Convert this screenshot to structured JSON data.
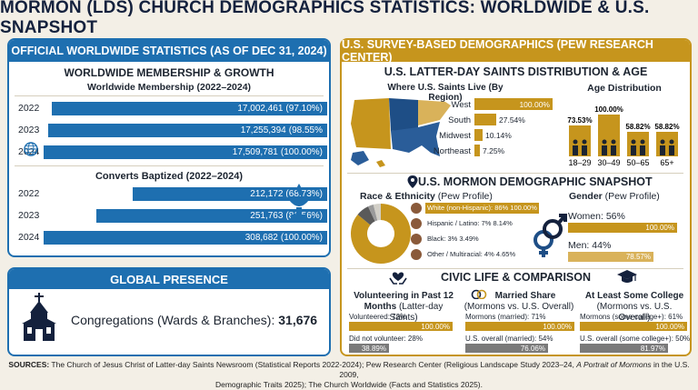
{
  "title": "MORMON (LDS) CHURCH DEMOGRAPHICS STATISTICS: WORLDWIDE & U.S. SNAPSHOT",
  "colors": {
    "blue": "#1e6fb0",
    "gold": "#c6951d",
    "navy": "#14213d",
    "gray": "#7a7a7a"
  },
  "left": {
    "header": "OFFICIAL WORLDWIDE STATISTICS (AS OF DEC 31, 2024)",
    "membership_title": "WORLDWIDE MEMBERSHIP & GROWTH",
    "converts_title": "Converts Baptized (2022–2024)",
    "global_header": "GLOBAL PRESENCE",
    "congregations_label": "Congregations (Wards & Branches): ",
    "congregations_value": "31,676"
  },
  "right": {
    "header": "U.S. SURVEY-BASED DEMOGRAPHICS (PEW RESEARCH CENTER)",
    "dist_title": "U.S. LATTER-DAY SAINTS DISTRIBUTION & AGE",
    "snapshot_title": "U.S. MORMON DEMOGRAPHIC SNAPSHOT",
    "race_title": "Race & Ethnicity",
    "race_note": " (Pew Profile)",
    "gender_title": "Gender",
    "gender_note": " (Pew Profile)",
    "civic_title": "CIVIC LIFE & COMPARISON",
    "vol_title": "Volunteering in Past 12 Months",
    "vol_note": " (Latter-day Saints)",
    "mar_title": "Married Share",
    "mar_note": "(Mormons vs. U.S. Overall)",
    "col_title": "At Least Some College",
    "col_note": "(Mormons vs. U.S. Overall)"
  },
  "sources": {
    "label": "SOURCES:",
    "text1": " The Church of Jesus Christ of Latter-day Saints Newsroom (Statistical Reports 2022-2024); Pew Research Center (Religious Landscape Study 2023–24, ",
    "italic": "A Portrait of Mormons",
    "text2": " in the U.S. 2009,",
    "line2": "Demographic Traits 2025); The Church Worldwide (Facts and Statistics 2025)."
  },
  "chart_data": [
    {
      "type": "bar",
      "title": "Worldwide Membership (2022–2024)",
      "categories": [
        "2022",
        "2023",
        "2024"
      ],
      "values": [
        17002461,
        17255394,
        17509781
      ],
      "value_labels": [
        "17,002,461",
        "17,255,394",
        "17,509,781"
      ],
      "percent_labels": [
        "(97.10%)",
        "(98.55%",
        "(100.00%)"
      ],
      "percents": [
        97.1,
        98.55,
        100.0
      ]
    },
    {
      "type": "bar",
      "title": "Converts Baptized (2022–2024)",
      "categories": [
        "2022",
        "2023",
        "2024"
      ],
      "values": [
        212172,
        251763,
        308682
      ],
      "value_labels": [
        "212,172",
        "251,763",
        "308,682"
      ],
      "percent_labels": [
        "(68.73%)",
        "(81.56%)",
        "(100.00%)"
      ],
      "percents": [
        68.73,
        81.56,
        100.0
      ]
    },
    {
      "type": "bar",
      "title": "Where U.S. Saints Live (By Region)",
      "categories": [
        "West",
        "South",
        "Midwest",
        "Northeast"
      ],
      "percents": [
        100.0,
        27.54,
        10.14,
        7.25
      ],
      "value_labels": [
        "100.00%",
        "27.54%",
        "10.14%",
        "7.25%"
      ]
    },
    {
      "type": "bar",
      "title": "Age Distribution",
      "categories": [
        "18–29",
        "30–49",
        "50–65",
        "65+"
      ],
      "percents": [
        73.53,
        100.0,
        58.82,
        58.82
      ],
      "value_labels": [
        "73.53%",
        "100.00%",
        "58.82%",
        "58.82%"
      ]
    },
    {
      "type": "pie",
      "title": "Race & Ethnicity",
      "categories": [
        "White (non-Hispanic)",
        "Hispanic / Latino",
        "Black",
        "Other / Multiracial"
      ],
      "values": [
        86,
        7,
        3,
        4
      ],
      "labels": [
        "White (non-Hispanic): 86% 100.00%",
        "Hispanic / Latino: 7% 8.14%",
        "Black: 3% 3.49%",
        "Other / Multiracial: 4% 4.65%"
      ]
    },
    {
      "type": "bar",
      "title": "Gender",
      "categories": [
        "Women",
        "Men"
      ],
      "values": [
        56,
        44
      ],
      "labels": [
        "Women: 56%",
        "Men: 44%"
      ],
      "index_labels": [
        "100.00%",
        "78.57%"
      ],
      "index": [
        100.0,
        78.57
      ]
    },
    {
      "type": "bar",
      "title": "Volunteering in Past 12 Months",
      "categories": [
        "Volunteered",
        "Did not volunteer"
      ],
      "values": [
        72,
        28
      ],
      "labels": [
        "Volunteered: 72%",
        "Did not volunteer: 28%"
      ],
      "index_labels": [
        "100.00%",
        "38.89%"
      ],
      "index": [
        100.0,
        38.89
      ]
    },
    {
      "type": "bar",
      "title": "Married Share",
      "categories": [
        "Mormons (married)",
        "U.S. overall (married)"
      ],
      "values": [
        71,
        54
      ],
      "labels": [
        "Mormons (married): 71%",
        "U.S. overall (married): 54%"
      ],
      "index_labels": [
        "100.00%",
        "76.06%"
      ],
      "index": [
        100.0,
        76.06
      ]
    },
    {
      "type": "bar",
      "title": "At Least Some College",
      "categories": [
        "Mormons (some college+)",
        "U.S. overall (some college+)"
      ],
      "values": [
        61,
        50
      ],
      "labels": [
        "Mormons (some college+): 61%",
        "U.S. overall (some college+): 50%"
      ],
      "index_labels": [
        "100.00%",
        "81.97%"
      ],
      "index": [
        100.0,
        81.97
      ]
    }
  ]
}
